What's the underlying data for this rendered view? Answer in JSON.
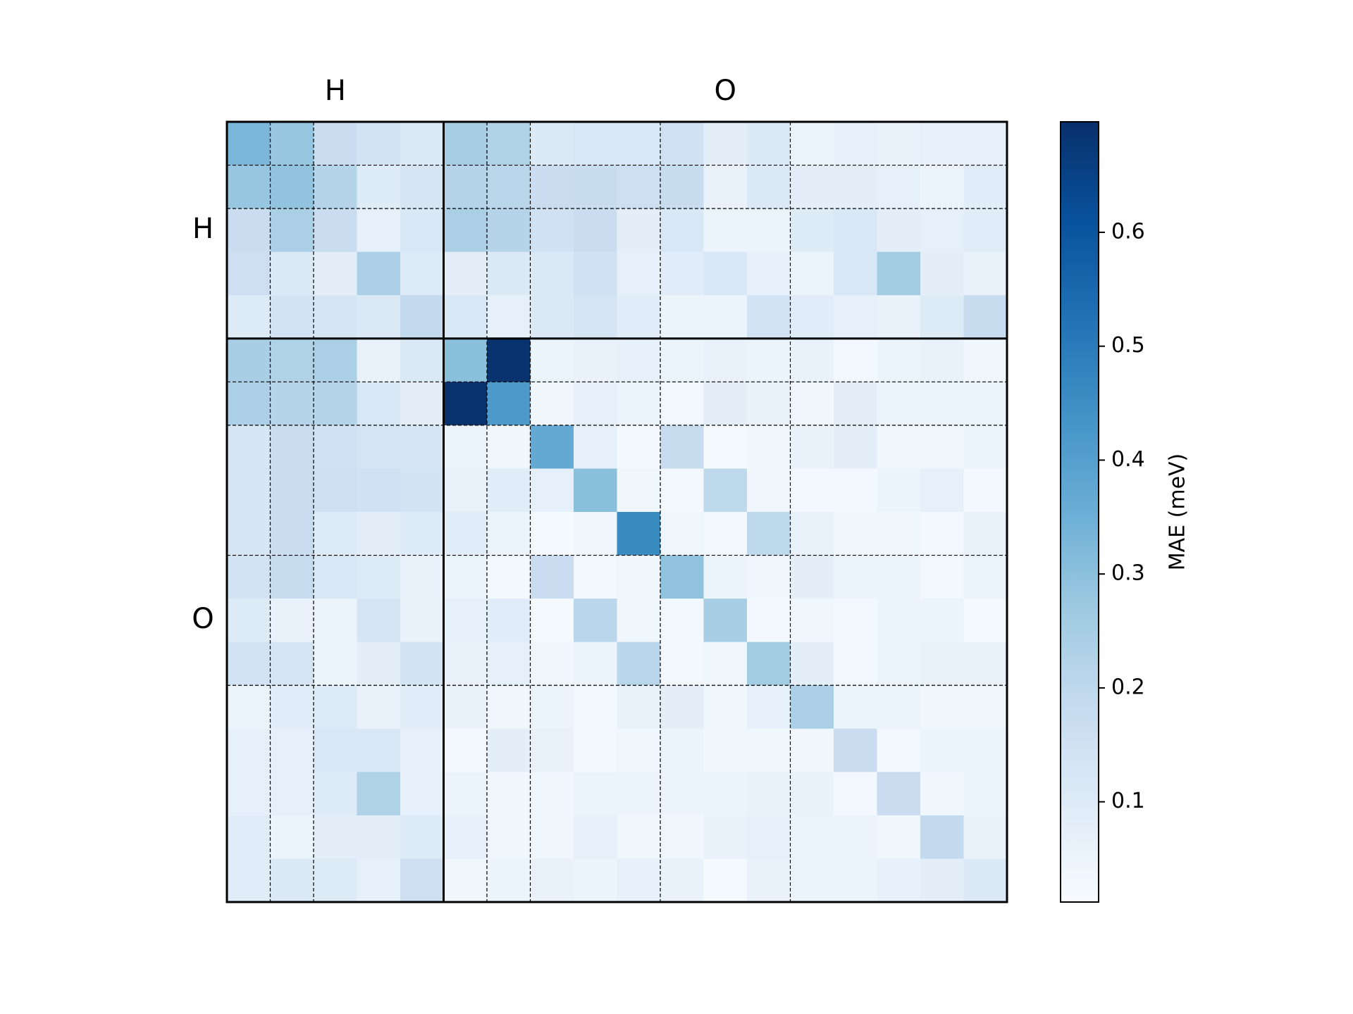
{
  "chart_data": {
    "type": "heatmap",
    "colormap": "Blues",
    "groups": [
      {
        "label": "H",
        "size": 5
      },
      {
        "label": "O",
        "size": 13
      }
    ],
    "dashed_boundaries": [
      1,
      2,
      6,
      7,
      10,
      13
    ],
    "z": [
      [
        0.33,
        0.28,
        0.17,
        0.14,
        0.11,
        0.25,
        0.23,
        0.11,
        0.12,
        0.12,
        0.15,
        0.08,
        0.11,
        0.05,
        0.07,
        0.06,
        0.07,
        0.07
      ],
      [
        0.28,
        0.29,
        0.22,
        0.1,
        0.13,
        0.22,
        0.21,
        0.17,
        0.18,
        0.16,
        0.18,
        0.06,
        0.11,
        0.08,
        0.08,
        0.07,
        0.05,
        0.09
      ],
      [
        0.17,
        0.24,
        0.17,
        0.07,
        0.12,
        0.24,
        0.22,
        0.15,
        0.17,
        0.08,
        0.12,
        0.05,
        0.05,
        0.1,
        0.12,
        0.08,
        0.07,
        0.09
      ],
      [
        0.16,
        0.11,
        0.08,
        0.24,
        0.1,
        0.08,
        0.11,
        0.11,
        0.15,
        0.07,
        0.09,
        0.12,
        0.07,
        0.05,
        0.12,
        0.26,
        0.08,
        0.06
      ],
      [
        0.1,
        0.14,
        0.13,
        0.11,
        0.19,
        0.12,
        0.07,
        0.11,
        0.13,
        0.09,
        0.05,
        0.05,
        0.14,
        0.09,
        0.07,
        0.06,
        0.1,
        0.18
      ],
      [
        0.25,
        0.23,
        0.24,
        0.06,
        0.11,
        0.3,
        0.69,
        0.05,
        0.06,
        0.07,
        0.05,
        0.06,
        0.05,
        0.06,
        0.03,
        0.05,
        0.06,
        0.04
      ],
      [
        0.24,
        0.22,
        0.22,
        0.12,
        0.08,
        0.69,
        0.42,
        0.04,
        0.07,
        0.05,
        0.03,
        0.08,
        0.06,
        0.04,
        0.08,
        0.05,
        0.05,
        0.05
      ],
      [
        0.13,
        0.17,
        0.15,
        0.13,
        0.13,
        0.05,
        0.04,
        0.37,
        0.07,
        0.03,
        0.18,
        0.02,
        0.04,
        0.06,
        0.08,
        0.04,
        0.04,
        0.05
      ],
      [
        0.13,
        0.17,
        0.16,
        0.15,
        0.14,
        0.06,
        0.09,
        0.07,
        0.3,
        0.04,
        0.03,
        0.2,
        0.04,
        0.03,
        0.03,
        0.05,
        0.07,
        0.03
      ],
      [
        0.13,
        0.17,
        0.1,
        0.08,
        0.1,
        0.09,
        0.05,
        0.02,
        0.04,
        0.46,
        0.04,
        0.03,
        0.2,
        0.06,
        0.04,
        0.04,
        0.03,
        0.06
      ],
      [
        0.14,
        0.18,
        0.12,
        0.1,
        0.06,
        0.05,
        0.03,
        0.17,
        0.03,
        0.04,
        0.29,
        0.05,
        0.04,
        0.08,
        0.05,
        0.05,
        0.03,
        0.05
      ],
      [
        0.1,
        0.06,
        0.05,
        0.13,
        0.06,
        0.07,
        0.09,
        0.02,
        0.21,
        0.04,
        0.03,
        0.25,
        0.03,
        0.04,
        0.03,
        0.05,
        0.05,
        0.02
      ],
      [
        0.14,
        0.13,
        0.05,
        0.08,
        0.14,
        0.06,
        0.07,
        0.04,
        0.05,
        0.21,
        0.03,
        0.04,
        0.26,
        0.08,
        0.03,
        0.05,
        0.06,
        0.06
      ],
      [
        0.05,
        0.09,
        0.1,
        0.06,
        0.09,
        0.06,
        0.04,
        0.05,
        0.03,
        0.06,
        0.08,
        0.04,
        0.07,
        0.24,
        0.05,
        0.05,
        0.04,
        0.04
      ],
      [
        0.07,
        0.07,
        0.12,
        0.12,
        0.07,
        0.03,
        0.08,
        0.06,
        0.03,
        0.04,
        0.05,
        0.04,
        0.04,
        0.04,
        0.17,
        0.03,
        0.05,
        0.05
      ],
      [
        0.07,
        0.07,
        0.1,
        0.23,
        0.07,
        0.05,
        0.04,
        0.04,
        0.05,
        0.05,
        0.05,
        0.05,
        0.06,
        0.06,
        0.03,
        0.17,
        0.04,
        0.05
      ],
      [
        0.09,
        0.05,
        0.08,
        0.08,
        0.1,
        0.07,
        0.04,
        0.04,
        0.07,
        0.04,
        0.04,
        0.06,
        0.07,
        0.05,
        0.05,
        0.04,
        0.19,
        0.06
      ],
      [
        0.09,
        0.11,
        0.1,
        0.07,
        0.16,
        0.04,
        0.05,
        0.06,
        0.05,
        0.07,
        0.06,
        0.02,
        0.06,
        0.05,
        0.05,
        0.07,
        0.08,
        0.11
      ]
    ],
    "colorbar": {
      "label": "MAE (meV)",
      "lim": [
        0.012,
        0.697
      ],
      "ticks": [
        0.1,
        0.2,
        0.3,
        0.4,
        0.5,
        0.6
      ]
    }
  }
}
